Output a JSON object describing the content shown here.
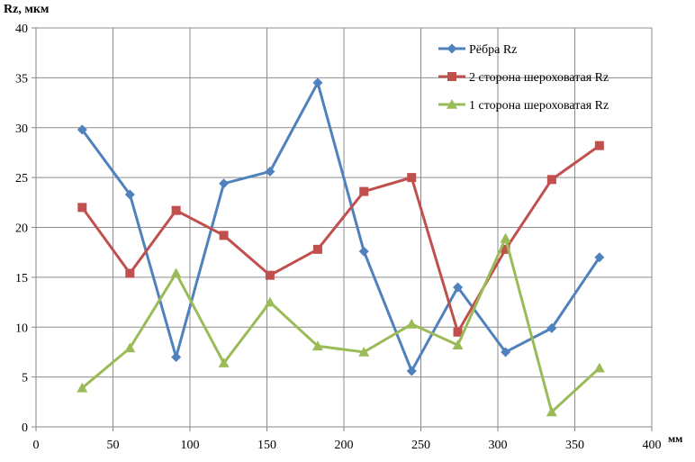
{
  "chart_data": {
    "type": "line",
    "ylabel": "Rz, мкм",
    "xlabel": "мм",
    "xlim": [
      0,
      400
    ],
    "ylim": [
      0,
      40
    ],
    "xticks": [
      0,
      50,
      100,
      150,
      200,
      250,
      300,
      350,
      400
    ],
    "yticks": [
      0,
      5,
      10,
      15,
      20,
      25,
      30,
      35,
      40
    ],
    "grid": true,
    "legend_position": "top-right",
    "x": [
      30,
      61,
      91,
      122,
      152,
      183,
      213,
      244,
      274,
      305,
      335,
      366
    ],
    "series": [
      {
        "name": "Рёбра Rz",
        "color": "#4F81BD",
        "marker": "diamond",
        "values": [
          29.8,
          23.3,
          7.0,
          24.4,
          25.6,
          34.5,
          17.6,
          5.6,
          14.0,
          7.5,
          9.9,
          17.0
        ]
      },
      {
        "name": "2 сторона шероховатая Rz",
        "color": "#C0504D",
        "marker": "square",
        "values": [
          22.0,
          15.4,
          21.7,
          19.2,
          15.2,
          17.8,
          23.6,
          25.0,
          9.5,
          17.8,
          24.8,
          28.2
        ]
      },
      {
        "name": "1 сторона шероховатая Rz",
        "color": "#9BBB59",
        "marker": "triangle",
        "values": [
          3.9,
          7.9,
          15.4,
          6.4,
          12.5,
          8.1,
          7.5,
          10.3,
          8.2,
          18.9,
          1.5,
          5.9
        ]
      }
    ]
  }
}
